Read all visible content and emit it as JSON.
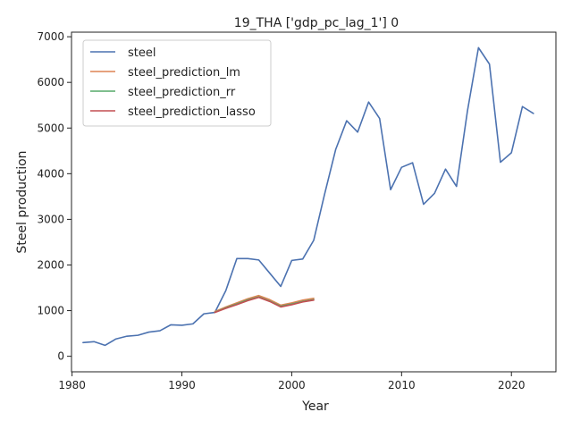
{
  "chart_data": {
    "type": "line",
    "title": "19_THA ['gdp_pc_lag_1'] 0",
    "xlabel": "Year",
    "ylabel": "Steel production",
    "xlim": [
      1979.95,
      2024.05
    ],
    "ylim": [
      -340,
      7100
    ],
    "x_ticks": [
      1980,
      1990,
      2000,
      2010,
      2020
    ],
    "y_ticks": [
      0,
      1000,
      2000,
      3000,
      4000,
      5000,
      6000,
      7000
    ],
    "grid": false,
    "legend_position": "upper-left",
    "series": [
      {
        "name": "steel",
        "color": "#4c72b0",
        "x": [
          1981,
          1982,
          1983,
          1984,
          1985,
          1986,
          1987,
          1988,
          1989,
          1990,
          1991,
          1992,
          1993,
          1994,
          1995,
          1996,
          1997,
          1998,
          1999,
          2000,
          2001,
          2002,
          2003,
          2004,
          2005,
          2006,
          2007,
          2008,
          2009,
          2010,
          2011,
          2012,
          2013,
          2014,
          2015,
          2016,
          2017,
          2018,
          2019,
          2020,
          2021,
          2022
        ],
        "y": [
          300,
          320,
          240,
          380,
          440,
          460,
          530,
          560,
          690,
          680,
          710,
          930,
          960,
          1440,
          2140,
          2140,
          2110,
          1820,
          1530,
          2100,
          2130,
          2540,
          3560,
          4530,
          5160,
          4910,
          5570,
          5210,
          3650,
          4140,
          4240,
          3330,
          3570,
          4100,
          3720,
          5380,
          6760,
          6400,
          4250,
          4460,
          5470,
          5320
        ]
      },
      {
        "name": "steel_prediction_lm",
        "color": "#dd8452",
        "x": [
          1993,
          1994,
          1995,
          1996,
          1997,
          1998,
          1999,
          2000,
          2001,
          2002
        ],
        "y": [
          980,
          1080,
          1170,
          1260,
          1330,
          1240,
          1120,
          1170,
          1230,
          1270
        ]
      },
      {
        "name": "steel_prediction_rr",
        "color": "#55a868",
        "x": [
          1993,
          1994,
          1995,
          1996,
          1997,
          1998,
          1999,
          2000,
          2001,
          2002
        ],
        "y": [
          965,
          1060,
          1145,
          1235,
          1300,
          1210,
          1095,
          1145,
          1200,
          1240
        ]
      },
      {
        "name": "steel_prediction_lasso",
        "color": "#c44e52",
        "x": [
          1993,
          1994,
          1995,
          1996,
          1997,
          1998,
          1999,
          2000,
          2001,
          2002
        ],
        "y": [
          960,
          1050,
          1130,
          1220,
          1290,
          1200,
          1080,
          1130,
          1190,
          1230
        ]
      }
    ]
  }
}
